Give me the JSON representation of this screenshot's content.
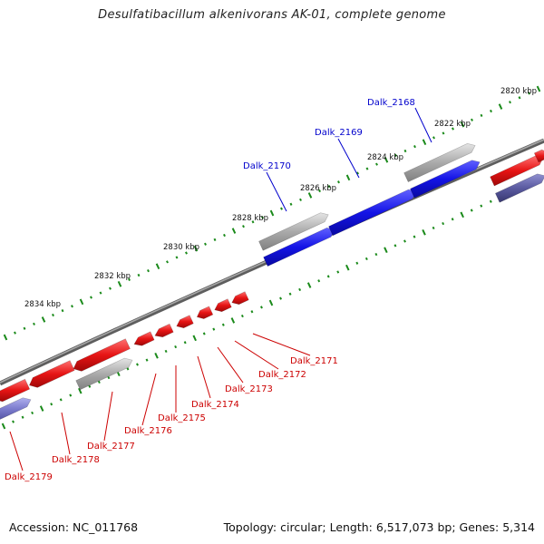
{
  "title": "Desulfatibacillum alkenivorans AK-01, complete genome",
  "footer": {
    "accession": "Accession: NC_011768",
    "summary": "Topology: circular; Length: 6,517,073 bp; Genes: 5,314"
  },
  "colors": {
    "forward_strand": "#1414e6",
    "reverse_strand": "#e61414",
    "hypothetical": "#aaaaaa",
    "other": "#5a5aa0",
    "backbone": "#7a7a7a",
    "ticks": "#1a8a1a",
    "forward_label": "#0000cc",
    "reverse_label": "#cc0000"
  },
  "ruler_labels": [
    "2820 kbp",
    "2822 kbp",
    "2824 kbp",
    "2826 kbp",
    "2828 kbp",
    "2830 kbp",
    "2832 kbp",
    "2834 kbp"
  ],
  "forward_gene_labels": [
    "Dalk_2168",
    "Dalk_2169",
    "Dalk_2170"
  ],
  "reverse_gene_labels": [
    "Dalk_2171",
    "Dalk_2172",
    "Dalk_2173",
    "Dalk_2174",
    "Dalk_2175",
    "Dalk_2176",
    "Dalk_2177",
    "Dalk_2178",
    "Dalk_2179"
  ]
}
